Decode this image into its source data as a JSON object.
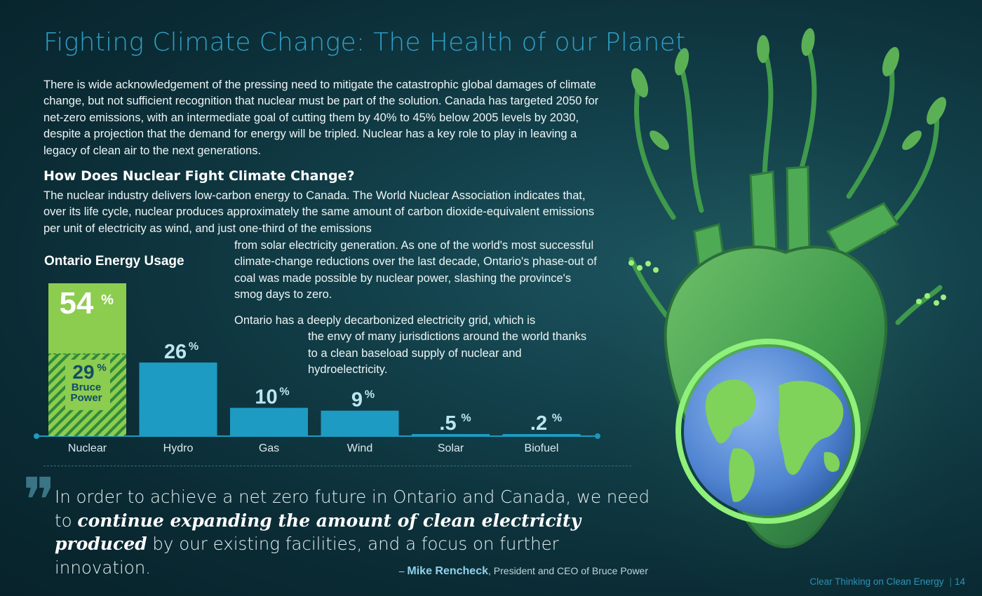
{
  "page": {
    "title": "Fighting Climate Change: The Health of our Planet",
    "intro": "There is wide acknowledgement of the pressing need to mitigate the catastrophic global damages of climate change, but not sufficient recognition that nuclear must be part of the solution. Canada has targeted 2050 for net-zero emissions, with an intermediate goal of cutting them by 40% to 45% below 2005 levels by 2030, despite a projection that the demand for energy will be tripled. Nuclear has a key role to play in leaving a legacy of clean air to the next generations.",
    "section_heading": "How Does Nuclear Fight Climate Change?",
    "section_body": "The nuclear industry delivers low-carbon energy to Canada. The World Nuclear Association indicates that, over its life cycle, nuclear produces approximately the same amount of carbon dioxide-equivalent emissions per unit of electricity as wind, and just one-third of the emissions",
    "section_body_cont": "from solar electricity generation. As one of the world's most successful climate-change reductions over the last decade, Ontario's phase-out of coal was made possible by nuclear power, slashing the province's smog days to zero.",
    "grid_para_line1": "Ontario has a deeply decarbonized electricity grid, which is",
    "grid_para_rest": "the envy of many jurisdictions around the world thanks to a clean baseload supply of nuclear and hydroelectricity."
  },
  "quote": {
    "part1": "In order to achieve a net zero future in Ontario and Canada, we need to ",
    "highlight": "continue expanding the amount of clean electricity produced",
    "part2": " by our existing facilities, and a focus on further innovation.",
    "dash": "– ",
    "author": "Mike Rencheck",
    "role": ", President and CEO of Bruce Power"
  },
  "footer": {
    "tagline": "Clear Thinking on Clean Energy",
    "page_number": "14"
  },
  "colors": {
    "title": "#2f9fc6",
    "bar": "#1e9bc2",
    "nuclear_top": "#8ccc4f",
    "nuclear_hatch_light": "#8ccc4f",
    "nuclear_hatch_dark": "#2f8a3a",
    "bruce_text": "#124c66",
    "label_light": "#bde6f2"
  },
  "chart_data": {
    "type": "bar",
    "title": "Ontario Energy Usage",
    "categories": [
      "Nuclear",
      "Hydro",
      "Gas",
      "Wind",
      "Solar",
      "Biofuel"
    ],
    "values": [
      54,
      26,
      10,
      9,
      0.5,
      0.2
    ],
    "value_labels": [
      "54",
      "26",
      "10",
      "9",
      ".5",
      ".2"
    ],
    "unit": "%",
    "sub_segment": {
      "category": "Nuclear",
      "value": 29,
      "label": "29",
      "name_lines": [
        "Bruce",
        "Power"
      ]
    }
  },
  "illustration": {
    "subject": "heart-shaped plant illustration holding planet earth"
  }
}
